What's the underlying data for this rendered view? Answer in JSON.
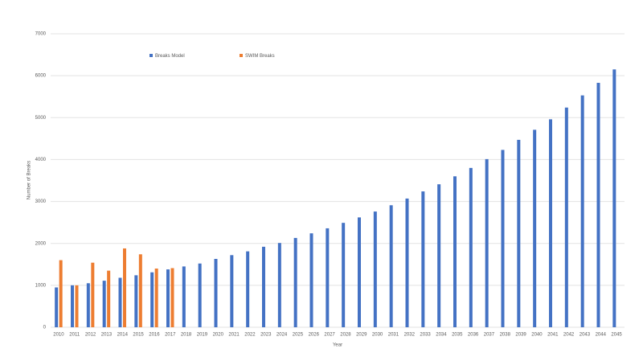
{
  "chart_data": {
    "type": "bar",
    "x_label": "Year",
    "y_label": "Number of Breaks",
    "categories": [
      "2010",
      "2011",
      "2012",
      "2013",
      "2014",
      "2015",
      "2016",
      "2017",
      "2018",
      "2019",
      "2020",
      "2021",
      "2022",
      "2023",
      "2024",
      "2025",
      "2026",
      "2027",
      "2028",
      "2029",
      "2030",
      "2031",
      "2032",
      "2033",
      "2034",
      "2035",
      "2036",
      "2037",
      "2038",
      "2039",
      "2040",
      "2041",
      "2042",
      "2043",
      "2044",
      "2045"
    ],
    "series": [
      {
        "name": "Breaks Model",
        "color": "#4472c4",
        "values": [
          950,
          1000,
          1050,
          1110,
          1180,
          1240,
          1310,
          1380,
          1450,
          1520,
          1630,
          1720,
          1810,
          1920,
          2010,
          2130,
          2240,
          2360,
          2490,
          2620,
          2760,
          2910,
          3070,
          3240,
          3410,
          3600,
          3800,
          4010,
          4230,
          4470,
          4710,
          4960,
          5240,
          5530,
          5830,
          6150
        ]
      },
      {
        "name": "SWIM Breaks",
        "color": "#ed7d31",
        "values": [
          1600,
          1000,
          1540,
          1350,
          1880,
          1740,
          1400,
          1410,
          null,
          null,
          null,
          null,
          null,
          null,
          null,
          null,
          null,
          null,
          null,
          null,
          null,
          null,
          null,
          null,
          null,
          null,
          null,
          null,
          null,
          null,
          null,
          null,
          null,
          null,
          null,
          null
        ]
      }
    ],
    "ylim": [
      0,
      7000
    ],
    "yticks": [
      0,
      1000,
      2000,
      3000,
      4000,
      5000,
      6000,
      7000
    ],
    "grid": true,
    "legend": "top"
  }
}
